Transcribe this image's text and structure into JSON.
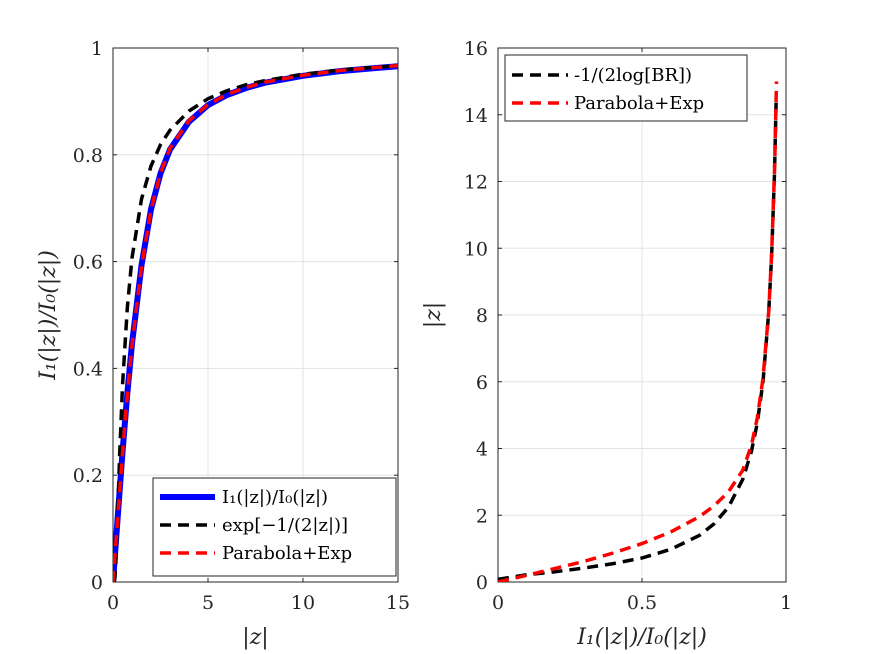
{
  "chart_data": [
    {
      "type": "line",
      "xlabel": "|z|",
      "ylabel": "I₁(|z|)/I₀(|z|)",
      "xlim": [
        0,
        15
      ],
      "ylim": [
        0,
        1
      ],
      "xticks": [
        0,
        5,
        10,
        15
      ],
      "yticks": [
        0,
        0.2,
        0.4,
        0.6,
        0.8,
        1
      ],
      "xtick_labels": [
        "0",
        "5",
        "10",
        "15"
      ],
      "ytick_labels": [
        "0",
        "0.2",
        "0.4",
        "0.6",
        "0.8",
        "1"
      ],
      "grid": true,
      "legend_position": "bottom-right",
      "series": [
        {
          "name": "I₁(|z|)/I₀(|z|)",
          "color": "#0000ff",
          "style": "solid",
          "x": [
            0,
            0.25,
            0.5,
            0.75,
            1,
            1.5,
            2,
            2.5,
            3,
            4,
            5,
            6,
            7,
            8,
            10,
            12,
            15
          ],
          "y": [
            0,
            0.124,
            0.243,
            0.353,
            0.446,
            0.593,
            0.698,
            0.765,
            0.81,
            0.862,
            0.893,
            0.912,
            0.925,
            0.935,
            0.948,
            0.957,
            0.966
          ]
        },
        {
          "name": "exp[−1/(2|z|)]",
          "color": "#000000",
          "style": "dashed",
          "x": [
            0.05,
            0.1,
            0.15,
            0.25,
            0.35,
            0.5,
            0.75,
            1,
            1.5,
            2,
            2.5,
            3,
            4,
            5,
            6,
            7,
            8,
            10,
            12,
            15
          ],
          "y": [
            5e-05,
            0.0067,
            0.036,
            0.135,
            0.24,
            0.368,
            0.513,
            0.607,
            0.717,
            0.779,
            0.819,
            0.846,
            0.882,
            0.905,
            0.92,
            0.931,
            0.939,
            0.951,
            0.959,
            0.967
          ]
        },
        {
          "name": "Parabola+Exp",
          "color": "#ff0000",
          "style": "dashed",
          "x": [
            0,
            0.25,
            0.5,
            0.75,
            1,
            1.5,
            2,
            2.5,
            3,
            4,
            5,
            6,
            7,
            8,
            10,
            12,
            15
          ],
          "y": [
            0,
            0.122,
            0.241,
            0.35,
            0.444,
            0.591,
            0.697,
            0.766,
            0.812,
            0.864,
            0.894,
            0.913,
            0.926,
            0.936,
            0.949,
            0.958,
            0.967
          ]
        }
      ]
    },
    {
      "type": "line",
      "xlabel": "I₁(|z|)/I₀(|z|)",
      "ylabel": "|z|",
      "xlim": [
        0,
        1
      ],
      "ylim": [
        0,
        16
      ],
      "xticks": [
        0,
        0.5,
        1
      ],
      "yticks": [
        0,
        2,
        4,
        6,
        8,
        10,
        12,
        14,
        16
      ],
      "xtick_labels": [
        "0",
        "0.5",
        "1"
      ],
      "ytick_labels": [
        "0",
        "2",
        "4",
        "6",
        "8",
        "10",
        "12",
        "14",
        "16"
      ],
      "grid": true,
      "legend_position": "top-left",
      "series": [
        {
          "name": "-1/(2log[BR])",
          "color": "#000000",
          "style": "dashed",
          "x": [
            0.0,
            0.1,
            0.2,
            0.3,
            0.4,
            0.5,
            0.6,
            0.7,
            0.75,
            0.8,
            0.85,
            0.88,
            0.9,
            0.92,
            0.94,
            0.95,
            0.96,
            0.966
          ],
          "y": [
            0.08,
            0.22,
            0.31,
            0.42,
            0.55,
            0.72,
            0.98,
            1.4,
            1.74,
            2.24,
            3.08,
            3.91,
            4.75,
            6.0,
            8.08,
            9.75,
            12.25,
            14.5
          ]
        },
        {
          "name": "Parabola+Exp",
          "color": "#ff0000",
          "style": "dashed",
          "x": [
            0.0,
            0.1,
            0.2,
            0.3,
            0.4,
            0.5,
            0.6,
            0.7,
            0.75,
            0.8,
            0.85,
            0.88,
            0.9,
            0.92,
            0.94,
            0.95,
            0.96,
            0.967
          ],
          "y": [
            0.0,
            0.2,
            0.41,
            0.62,
            0.87,
            1.15,
            1.5,
            1.96,
            2.28,
            2.7,
            3.35,
            4.1,
            4.9,
            6.1,
            8.1,
            9.8,
            12.3,
            15.0
          ]
        }
      ]
    }
  ]
}
